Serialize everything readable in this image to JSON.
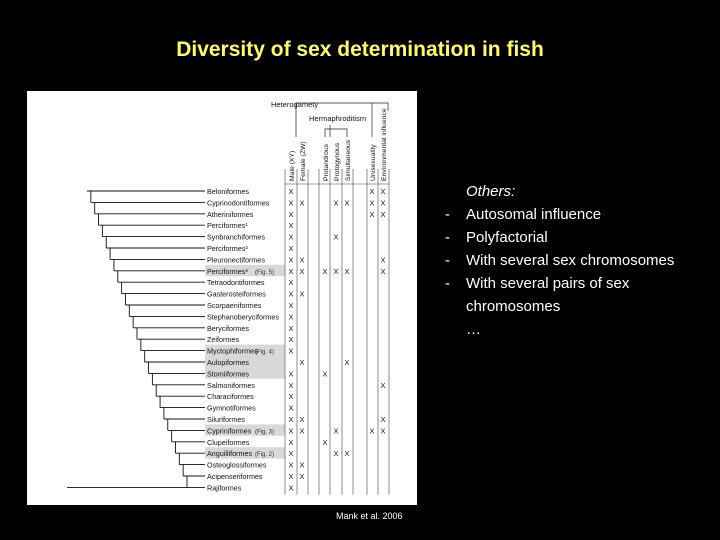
{
  "slide": {
    "title": "Diversity of sex determination in fish",
    "credit": "Mank et al. 2006"
  },
  "notes": {
    "header": "Others:",
    "bullet_marker": "-",
    "items": [
      "Autosomal influence",
      "Polyfactorial",
      "With several sex chromosomes",
      "With several pairs of sex chromosomes"
    ],
    "ellipsis": "…"
  },
  "figure": {
    "group_labels": {
      "heterogamety": "Heterogamety",
      "hermaphroditism": "Hermaphroditism"
    },
    "columns": [
      "Male (XY)",
      "Female (ZW)",
      "Protandrous",
      "Protogynous",
      "Simultaneous",
      "Unisexuality",
      "Environmental influence"
    ],
    "taxa": [
      {
        "name": "Beloniformes",
        "marks": [
          1,
          0,
          0,
          0,
          0,
          1,
          1
        ]
      },
      {
        "name": "Cyprinodontiformes",
        "marks": [
          1,
          1,
          0,
          1,
          1,
          1,
          1
        ]
      },
      {
        "name": "Atheriniformes",
        "marks": [
          1,
          0,
          0,
          0,
          0,
          1,
          1
        ]
      },
      {
        "name": "Perciformes¹",
        "marks": [
          1,
          0,
          0,
          0,
          0,
          0,
          0
        ]
      },
      {
        "name": "Synbranchiformes",
        "marks": [
          1,
          0,
          0,
          1,
          0,
          0,
          0
        ]
      },
      {
        "name": "Perciformes²",
        "marks": [
          1,
          0,
          0,
          0,
          0,
          0,
          0
        ]
      },
      {
        "name": "Pleuronectiformes",
        "marks": [
          1,
          1,
          0,
          0,
          0,
          0,
          1
        ]
      },
      {
        "name": "Perciformes³",
        "note": "(Fig. 5)",
        "highlight": true,
        "marks": [
          1,
          1,
          1,
          1,
          1,
          0,
          1
        ]
      },
      {
        "name": "Tetraodontiformes",
        "marks": [
          1,
          0,
          0,
          0,
          0,
          0,
          0
        ]
      },
      {
        "name": "Gasterosteiformes",
        "marks": [
          1,
          1,
          0,
          0,
          0,
          0,
          0
        ]
      },
      {
        "name": "Scorpaeniformes",
        "marks": [
          1,
          0,
          0,
          0,
          0,
          0,
          0
        ]
      },
      {
        "name": "Stephanoberyciformes",
        "marks": [
          1,
          0,
          0,
          0,
          0,
          0,
          0
        ]
      },
      {
        "name": "Beryciformes",
        "marks": [
          1,
          0,
          0,
          0,
          0,
          0,
          0
        ]
      },
      {
        "name": "Zeiformes",
        "marks": [
          1,
          0,
          0,
          0,
          0,
          0,
          0
        ]
      },
      {
        "name": "Myctophiformes",
        "note": "(Fig. 4)",
        "highlight": true,
        "marks": [
          1,
          0,
          0,
          0,
          0,
          0,
          0
        ]
      },
      {
        "name": "Aulopiformes",
        "highlight": true,
        "marks": [
          0,
          1,
          0,
          0,
          1,
          0,
          0
        ]
      },
      {
        "name": "Stomiiformes",
        "highlight": true,
        "marks": [
          1,
          0,
          1,
          0,
          0,
          0,
          0
        ]
      },
      {
        "name": "Salmoniformes",
        "marks": [
          1,
          0,
          0,
          0,
          0,
          0,
          1
        ]
      },
      {
        "name": "Characiformes",
        "marks": [
          1,
          0,
          0,
          0,
          0,
          0,
          0
        ]
      },
      {
        "name": "Gymnotiformes",
        "marks": [
          1,
          0,
          0,
          0,
          0,
          0,
          0
        ]
      },
      {
        "name": "Siluriformes",
        "marks": [
          1,
          1,
          0,
          0,
          0,
          0,
          1
        ]
      },
      {
        "name": "Cypriniformes",
        "note": "(Fig. 3)",
        "highlight": true,
        "marks": [
          1,
          1,
          0,
          1,
          0,
          1,
          1
        ]
      },
      {
        "name": "Clupeiformes",
        "marks": [
          1,
          0,
          1,
          0,
          0,
          0,
          0
        ]
      },
      {
        "name": "Anguilliformes",
        "note": "(Fig. 2)",
        "highlight": true,
        "marks": [
          1,
          0,
          0,
          1,
          1,
          0,
          0
        ]
      },
      {
        "name": "Osteoglossiformes",
        "marks": [
          1,
          1,
          0,
          0,
          0,
          0,
          0
        ]
      },
      {
        "name": "Acipenseriformes",
        "marks": [
          1,
          1,
          0,
          0,
          0,
          0,
          0
        ]
      },
      {
        "name": "Rajiformes",
        "marks": [
          1,
          0,
          0,
          0,
          0,
          0,
          0
        ]
      }
    ],
    "mark_symbol": "X"
  }
}
